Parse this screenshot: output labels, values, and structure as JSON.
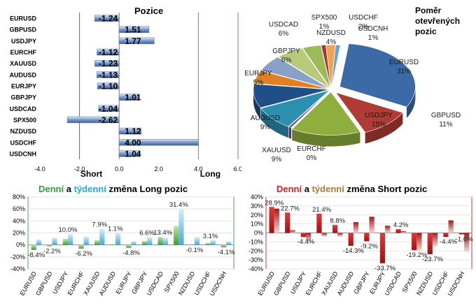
{
  "colors": {
    "green": "#2fa038",
    "cyan": "#26a6d9",
    "red": "#d61e1e",
    "tan": "#b07a3a",
    "bar_blue": "#7f9fd0",
    "bar_blue_dark": "#3f5f99",
    "grid_green": "#4aa84a",
    "grid_red": "#c43a3a"
  },
  "positions": {
    "title": "Pozice",
    "short_label": "Short",
    "long_label": "Long"
  },
  "pie": {
    "title_line1": "Poměr",
    "title_line2": "otevřených",
    "title_line3": "pozic"
  },
  "long_panel": {
    "word_daily": "Denní",
    "word_and": " a ",
    "word_weekly": "týdenní",
    "word_rest": " změna Long pozic"
  },
  "short_panel": {
    "word_daily": "Denní",
    "word_and": " a ",
    "word_weekly": "týdenní",
    "word_rest": " změna Short pozic"
  },
  "chart_data": [
    {
      "type": "bar",
      "orientation": "horizontal",
      "title": "Pozice",
      "categories": [
        "EURUSD",
        "GBPUSD",
        "USDJPY",
        "EURCHF",
        "XAUUSD",
        "AUDUSD",
        "EURJPY",
        "GBPJPY",
        "USDCAD",
        "SPX500",
        "NZDUSD",
        "USDCHF",
        "USDCNH"
      ],
      "values": [
        -1.24,
        1.51,
        1.77,
        -1.12,
        -1.23,
        -1.13,
        -1.1,
        1.01,
        -1.04,
        -2.62,
        1.12,
        4.0,
        1.04
      ],
      "value_labels": [
        "-1.24",
        "1.51",
        "1.77",
        "-1.12",
        "-1.23",
        "-1.13",
        "-1.10",
        "1.01",
        "-1.04",
        "-2.62",
        "1.12",
        "4.00",
        "1.04"
      ],
      "xlim": [
        -4.0,
        6.0
      ],
      "xticks": [
        "-4.0",
        "-2.0",
        "0.0",
        "2.0",
        "4.0",
        "6.0"
      ],
      "xtick_values": [
        -4,
        -2,
        0,
        2,
        4,
        6
      ],
      "xlabel_left": "Short",
      "xlabel_right": "Long"
    },
    {
      "type": "pie",
      "title": "Poměr otevřených pozic",
      "slices": [
        {
          "label": "EURUSD",
          "pct": "31%",
          "value": 31,
          "color": "#3b6aa6"
        },
        {
          "label": "GBPUSD",
          "pct": "11%",
          "value": 11,
          "color": "#b03a35"
        },
        {
          "label": "USDJPY",
          "pct": "15%",
          "value": 15,
          "color": "#8fae3e"
        },
        {
          "label": "EURCHF",
          "pct": "0%",
          "value": 0.6,
          "color": "#6a4b8f"
        },
        {
          "label": "XAUUSD",
          "pct": "9%",
          "value": 9,
          "color": "#2b8fb0"
        },
        {
          "label": "AUDUSD",
          "pct": "9%",
          "value": 9,
          "color": "#1f4f86"
        },
        {
          "label": "EURJPY",
          "pct": "5%",
          "value": 5,
          "color": "#e07f26"
        },
        {
          "label": "GBPJPY",
          "pct": "6%",
          "value": 6,
          "color": "#8aa1c7"
        },
        {
          "label": "USDCAD",
          "pct": "6%",
          "value": 6,
          "color": "#b8c97a"
        },
        {
          "label": "NZDUSD",
          "pct": "4%",
          "value": 4,
          "color": "#9cbb58"
        },
        {
          "label": "SPX500",
          "pct": "1%",
          "value": 1,
          "color": "#a53a36"
        },
        {
          "label": "USDCHF",
          "pct": "2%",
          "value": 2,
          "color": "#f2a34c"
        },
        {
          "label": "USDCNH",
          "pct": "1%",
          "value": 1,
          "color": "#5fa7d6"
        }
      ]
    },
    {
      "type": "bar",
      "title": "Denní a týdenní změna Long pozic",
      "categories": [
        "EURUSD",
        "GBPUSD",
        "USDJPY",
        "EURCHF",
        "XAUUSD",
        "AUDUSD",
        "EURJPY",
        "GBPJPY",
        "USDCAD",
        "SPX500",
        "NZDUSD",
        "USDCHF",
        "USDCNH"
      ],
      "series": [
        {
          "name": "Denní",
          "values": [
            -8.4,
            -2.2,
            10.0,
            -6.2,
            7.9,
            1.1,
            -4.8,
            6.6,
            13.4,
            31.4,
            -0.1,
            3.1,
            -4.1
          ]
        },
        {
          "name": "týdenní",
          "values": [
            9,
            12,
            18,
            14,
            27,
            20,
            6,
            13,
            12,
            60,
            13,
            8,
            6
          ]
        }
      ],
      "value_labels": [
        "-8.4%",
        "-2.2%",
        "10.0%",
        "-6.2%",
        "7.9%",
        "1.1%",
        "-4.8%",
        "6.6%",
        "13.4%",
        "31.4%",
        "-0.1%",
        "3.1%",
        "-4.1%"
      ],
      "ylim": [
        -40,
        80
      ],
      "yticks": [
        "-40%",
        "-20%",
        "0%",
        "20%",
        "40%",
        "60%",
        "80%"
      ],
      "ytick_values": [
        -40,
        -20,
        0,
        20,
        40,
        60,
        80
      ]
    },
    {
      "type": "bar",
      "title": "Denní a týdenní změna Short pozic",
      "categories": [
        "EURUSD",
        "GBPUSD",
        "USDJPY",
        "EURCHF",
        "XAUUSD",
        "AUDUSD",
        "GBPJPY",
        "EURJPY",
        "USDCAD",
        "SPX500",
        "NZDUSD",
        "USDCHF",
        "USDCNH"
      ],
      "series": [
        {
          "name": "Denní",
          "values": [
            28.9,
            22.7,
            -4.4,
            21.4,
            8.8,
            -14.3,
            -9.2,
            -33.7,
            4.2,
            -19.2,
            -23.7,
            -4.4,
            -1.6
          ]
        },
        {
          "name": "týdenní",
          "values": [
            27,
            3,
            -9,
            -4,
            -4,
            12,
            18,
            8,
            2,
            -20,
            -15,
            14,
            -21
          ]
        }
      ],
      "value_labels": [
        "28.9%",
        "22.7%",
        "-4.4%",
        "21.4%",
        "8.8%",
        "-14.3%",
        "-9.2%",
        "-33.7%",
        "4.2%",
        "-19.2%",
        "-23.7%",
        "-4.4%",
        "-1.6%"
      ],
      "ylim": [
        -40,
        40
      ],
      "yticks": [
        "-40%",
        "-30%",
        "-20%",
        "-10%",
        "0%",
        "10%",
        "20%",
        "30%",
        "40%"
      ],
      "ytick_values": [
        -40,
        -30,
        -20,
        -10,
        0,
        10,
        20,
        30,
        40
      ]
    }
  ]
}
